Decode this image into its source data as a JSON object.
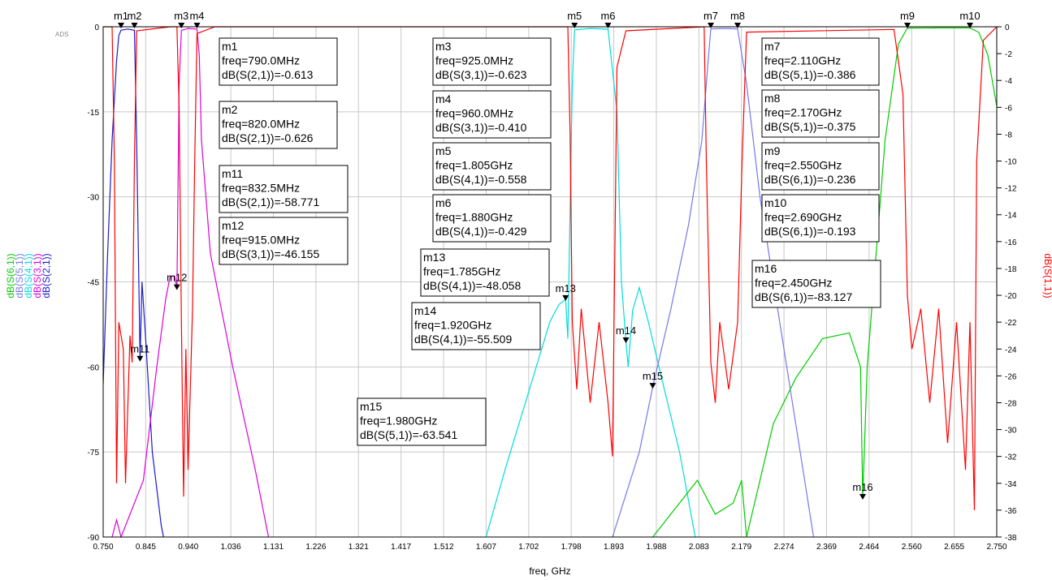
{
  "app_badge": "ADS",
  "chart_data": {
    "type": "line",
    "xlabel": "freq, GHz",
    "xlim": [
      0.75,
      2.75
    ],
    "x_ticks": [
      "0.750",
      "0.845",
      "0.940",
      "1.036",
      "1.131",
      "1.226",
      "1.321",
      "1.417",
      "1.512",
      "1.607",
      "1.702",
      "1.798",
      "1.893",
      "1.988",
      "2.083",
      "2.179",
      "2.274",
      "2.369",
      "2.464",
      "2.560",
      "2.655",
      "2.750"
    ],
    "left_axis": {
      "ylim": [
        -90,
        0
      ],
      "ticks": [
        "0",
        "-15",
        "-30",
        "-45",
        "-60",
        "-75",
        "-90"
      ],
      "labels": [
        {
          "text": "dB(S(6,1))",
          "color": "#00cc00"
        },
        {
          "text": "dB(S(5,1))",
          "color": "#7777ee"
        },
        {
          "text": "dB(S(4,1))",
          "color": "#00dddd"
        },
        {
          "text": "dB(S(3,1))",
          "color": "#dd00dd"
        },
        {
          "text": "dB(S(2,1))",
          "color": "#1a1acc"
        }
      ]
    },
    "right_axis": {
      "ylim": [
        -38,
        0
      ],
      "ticks": [
        "0",
        "-2",
        "-4",
        "-6",
        "-8",
        "-10",
        "-12",
        "-14",
        "-16",
        "-18",
        "-20",
        "-22",
        "-24",
        "-26",
        "-28",
        "-30",
        "-32",
        "-34",
        "-36",
        "-38"
      ],
      "label": {
        "text": "dB(S(1,1))",
        "color": "#ff0000"
      }
    },
    "grid": true,
    "series": [
      {
        "name": "dB(S(2,1))",
        "color": "#1a1acc",
        "axis": "left",
        "points": [
          [
            0.75,
            -63
          ],
          [
            0.76,
            -40
          ],
          [
            0.77,
            -20
          ],
          [
            0.78,
            -6
          ],
          [
            0.785,
            -1.5
          ],
          [
            0.79,
            -0.613
          ],
          [
            0.805,
            -0.4
          ],
          [
            0.82,
            -0.626
          ],
          [
            0.825,
            -20
          ],
          [
            0.8325,
            -58.771
          ],
          [
            0.837,
            -45
          ],
          [
            0.845,
            -55
          ],
          [
            0.86,
            -75
          ],
          [
            0.88,
            -88
          ],
          [
            0.885,
            -90
          ]
        ]
      },
      {
        "name": "dB(S(3,1))",
        "color": "#dd00dd",
        "axis": "left",
        "points": [
          [
            0.77,
            -90
          ],
          [
            0.78,
            -87
          ],
          [
            0.79,
            -90
          ],
          [
            0.84,
            -80
          ],
          [
            0.87,
            -60
          ],
          [
            0.89,
            -48
          ],
          [
            0.9,
            -44
          ],
          [
            0.91,
            -44
          ],
          [
            0.915,
            -46.155
          ],
          [
            0.92,
            -10
          ],
          [
            0.925,
            -0.623
          ],
          [
            0.94,
            -0.3
          ],
          [
            0.96,
            -0.41
          ],
          [
            0.965,
            -5
          ],
          [
            0.97,
            -20
          ],
          [
            0.99,
            -40
          ],
          [
            1.04,
            -60
          ],
          [
            1.09,
            -78
          ],
          [
            1.12,
            -90
          ]
        ]
      },
      {
        "name": "dB(S(4,1))",
        "color": "#00dddd",
        "axis": "left",
        "points": [
          [
            1.607,
            -90
          ],
          [
            1.65,
            -78
          ],
          [
            1.7,
            -65
          ],
          [
            1.75,
            -52
          ],
          [
            1.77,
            -49
          ],
          [
            1.785,
            -48.058
          ],
          [
            1.79,
            -55
          ],
          [
            1.8,
            -10
          ],
          [
            1.805,
            -0.558
          ],
          [
            1.84,
            -0.3
          ],
          [
            1.88,
            -0.429
          ],
          [
            1.9,
            -15
          ],
          [
            1.91,
            -45
          ],
          [
            1.92,
            -55.509
          ],
          [
            1.925,
            -60
          ],
          [
            1.935,
            -50
          ],
          [
            1.95,
            -46
          ],
          [
            1.97,
            -52
          ],
          [
            2.0,
            -62
          ],
          [
            2.04,
            -75
          ],
          [
            2.075,
            -90
          ]
        ]
      },
      {
        "name": "dB(S(5,1))",
        "color": "#7777ee",
        "axis": "left",
        "points": [
          [
            1.89,
            -90
          ],
          [
            1.95,
            -75
          ],
          [
            1.98,
            -63.541
          ],
          [
            2.02,
            -50
          ],
          [
            2.06,
            -35
          ],
          [
            2.09,
            -20
          ],
          [
            2.105,
            -5
          ],
          [
            2.11,
            -0.386
          ],
          [
            2.14,
            -0.3
          ],
          [
            2.17,
            -0.375
          ],
          [
            2.19,
            -10
          ],
          [
            2.22,
            -30
          ],
          [
            2.26,
            -50
          ],
          [
            2.3,
            -70
          ],
          [
            2.34,
            -90
          ]
        ]
      },
      {
        "name": "dB(S(6,1))",
        "color": "#00cc00",
        "axis": "left",
        "points": [
          [
            1.98,
            -90
          ],
          [
            2.03,
            -85
          ],
          [
            2.08,
            -80
          ],
          [
            2.12,
            -86
          ],
          [
            2.16,
            -84
          ],
          [
            2.179,
            -80
          ],
          [
            2.19,
            -90
          ],
          [
            2.25,
            -70
          ],
          [
            2.3,
            -62
          ],
          [
            2.36,
            -55
          ],
          [
            2.42,
            -54
          ],
          [
            2.445,
            -60
          ],
          [
            2.45,
            -83.127
          ],
          [
            2.46,
            -60
          ],
          [
            2.48,
            -40
          ],
          [
            2.5,
            -20
          ],
          [
            2.53,
            -3
          ],
          [
            2.55,
            -0.236
          ],
          [
            2.62,
            -0.2
          ],
          [
            2.69,
            -0.193
          ],
          [
            2.71,
            -1
          ],
          [
            2.73,
            -5
          ],
          [
            2.75,
            -14
          ]
        ]
      },
      {
        "name": "dB(S(1,1))",
        "color": "#ff0000",
        "axis": "right",
        "points": [
          [
            0.75,
            0
          ],
          [
            0.77,
            0
          ],
          [
            0.775,
            -10
          ],
          [
            0.78,
            -34
          ],
          [
            0.785,
            -22
          ],
          [
            0.795,
            -24
          ],
          [
            0.8,
            -34
          ],
          [
            0.81,
            -23
          ],
          [
            0.815,
            -25
          ],
          [
            0.82,
            -10
          ],
          [
            0.825,
            -0.3
          ],
          [
            0.9,
            0
          ],
          [
            0.915,
            0
          ],
          [
            0.92,
            -6
          ],
          [
            0.925,
            -22
          ],
          [
            0.93,
            -35
          ],
          [
            0.935,
            -24
          ],
          [
            0.94,
            -33
          ],
          [
            0.95,
            -21
          ],
          [
            0.955,
            -10
          ],
          [
            0.96,
            -0.5
          ],
          [
            1.0,
            0
          ],
          [
            1.79,
            0
          ],
          [
            1.795,
            -8
          ],
          [
            1.8,
            -22
          ],
          [
            1.81,
            -27
          ],
          [
            1.82,
            -21
          ],
          [
            1.84,
            -28
          ],
          [
            1.86,
            -22
          ],
          [
            1.88,
            -28
          ],
          [
            1.89,
            -32
          ],
          [
            1.9,
            -3
          ],
          [
            1.92,
            -0.3
          ],
          [
            2.095,
            0
          ],
          [
            2.1,
            -10
          ],
          [
            2.11,
            -25
          ],
          [
            2.12,
            -28
          ],
          [
            2.13,
            -22
          ],
          [
            2.15,
            -27
          ],
          [
            2.17,
            -22
          ],
          [
            2.18,
            -10
          ],
          [
            2.19,
            -0.4
          ],
          [
            2.52,
            -0.2
          ],
          [
            2.54,
            -5
          ],
          [
            2.55,
            -20
          ],
          [
            2.56,
            -24
          ],
          [
            2.58,
            -21
          ],
          [
            2.6,
            -28
          ],
          [
            2.62,
            -21
          ],
          [
            2.64,
            -31
          ],
          [
            2.66,
            -22
          ],
          [
            2.68,
            -33
          ],
          [
            2.69,
            -22
          ],
          [
            2.7,
            -36
          ],
          [
            2.705,
            -10
          ],
          [
            2.72,
            -1
          ],
          [
            2.75,
            0
          ]
        ]
      }
    ],
    "markers": [
      {
        "id": "m1",
        "x": 0.79,
        "y": -0.613,
        "axis": "left",
        "top": true
      },
      {
        "id": "m2",
        "x": 0.82,
        "y": -0.626,
        "axis": "left",
        "top": true
      },
      {
        "id": "m3",
        "x": 0.925,
        "y": -0.623,
        "axis": "left",
        "top": true
      },
      {
        "id": "m4",
        "x": 0.96,
        "y": -0.41,
        "axis": "left",
        "top": true
      },
      {
        "id": "m5",
        "x": 1.805,
        "y": -0.558,
        "axis": "left",
        "top": true
      },
      {
        "id": "m6",
        "x": 1.88,
        "y": -0.429,
        "axis": "left",
        "top": true
      },
      {
        "id": "m7",
        "x": 2.11,
        "y": -0.386,
        "axis": "left",
        "top": true
      },
      {
        "id": "m8",
        "x": 2.17,
        "y": -0.375,
        "axis": "left",
        "top": true
      },
      {
        "id": "m9",
        "x": 2.55,
        "y": -0.236,
        "axis": "left",
        "top": true
      },
      {
        "id": "m10",
        "x": 2.69,
        "y": -0.193,
        "axis": "left",
        "top": true
      },
      {
        "id": "m11",
        "x": 0.8325,
        "y": -58.771,
        "axis": "left",
        "top": false
      },
      {
        "id": "m12",
        "x": 0.915,
        "y": -46.155,
        "axis": "left",
        "top": false
      },
      {
        "id": "m13",
        "x": 1.785,
        "y": -48.058,
        "axis": "left",
        "top": false
      },
      {
        "id": "m14",
        "x": 1.92,
        "y": -55.509,
        "axis": "left",
        "top": false
      },
      {
        "id": "m15",
        "x": 1.98,
        "y": -63.541,
        "axis": "left",
        "top": false
      },
      {
        "id": "m16",
        "x": 2.45,
        "y": -83.127,
        "axis": "left",
        "top": false
      }
    ],
    "readouts": [
      {
        "id": "m1",
        "lines": [
          "m1",
          "freq=790.0MHz",
          "dB(S(2,1))=-0.613"
        ]
      },
      {
        "id": "m2",
        "lines": [
          "m2",
          "freq=820.0MHz",
          "dB(S(2,1))=-0.626"
        ]
      },
      {
        "id": "m11",
        "lines": [
          "m11",
          "freq=832.5MHz",
          "dB(S(2,1))=-58.771"
        ]
      },
      {
        "id": "m12",
        "lines": [
          "m12",
          "freq=915.0MHz",
          "dB(S(3,1))=-46.155"
        ]
      },
      {
        "id": "m3",
        "lines": [
          "m3",
          "freq=925.0MHz",
          "dB(S(3,1))=-0.623"
        ]
      },
      {
        "id": "m4",
        "lines": [
          "m4",
          "freq=960.0MHz",
          "dB(S(3,1))=-0.410"
        ]
      },
      {
        "id": "m5",
        "lines": [
          "m5",
          "freq=1.805GHz",
          "dB(S(4,1))=-0.558"
        ]
      },
      {
        "id": "m6",
        "lines": [
          "m6",
          "freq=1.880GHz",
          "dB(S(4,1))=-0.429"
        ]
      },
      {
        "id": "m13",
        "lines": [
          "m13",
          "freq=1.785GHz",
          "dB(S(4,1))=-48.058"
        ]
      },
      {
        "id": "m14",
        "lines": [
          "m14",
          "freq=1.920GHz",
          "dB(S(4,1))=-55.509"
        ]
      },
      {
        "id": "m15",
        "lines": [
          "m15",
          "freq=1.980GHz",
          "dB(S(5,1))=-63.541"
        ]
      },
      {
        "id": "m7",
        "lines": [
          "m7",
          "freq=2.110GHz",
          "dB(S(5,1))=-0.386"
        ]
      },
      {
        "id": "m8",
        "lines": [
          "m8",
          "freq=2.170GHz",
          "dB(S(5,1))=-0.375"
        ]
      },
      {
        "id": "m9",
        "lines": [
          "m9",
          "freq=2.550GHz",
          "dB(S(6,1))=-0.236"
        ]
      },
      {
        "id": "m10",
        "lines": [
          "m10",
          "freq=2.690GHz",
          "dB(S(6,1))=-0.193"
        ]
      },
      {
        "id": "m16",
        "lines": [
          "m16",
          "freq=2.450GHz",
          "dB(S(6,1))=-83.127"
        ]
      }
    ]
  }
}
